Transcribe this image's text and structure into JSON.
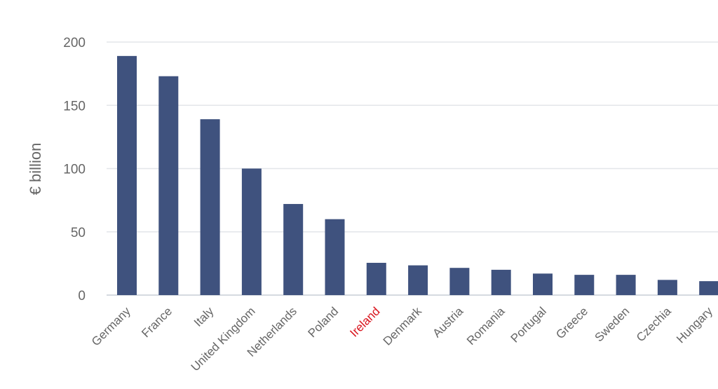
{
  "chart_data": {
    "type": "bar",
    "ylabel": "€ billion",
    "ylim": [
      0,
      200
    ],
    "yticks": [
      0,
      50,
      100,
      150,
      200
    ],
    "grid": true,
    "categories": [
      "Germany",
      "France",
      "Italy",
      "United Kingdom",
      "Netherlands",
      "Poland",
      "Ireland",
      "Denmark",
      "Austria",
      "Romania",
      "Portugal",
      "Greece",
      "Sweden",
      "Czechia",
      "Hungary"
    ],
    "values": [
      189,
      173,
      139,
      100,
      72,
      60,
      25.5,
      23.5,
      21.5,
      20,
      17,
      16,
      16,
      12,
      11
    ],
    "bar_color": "#3f527e",
    "highlight": {
      "category": "Ireland",
      "label_color": "#d9141d"
    }
  }
}
